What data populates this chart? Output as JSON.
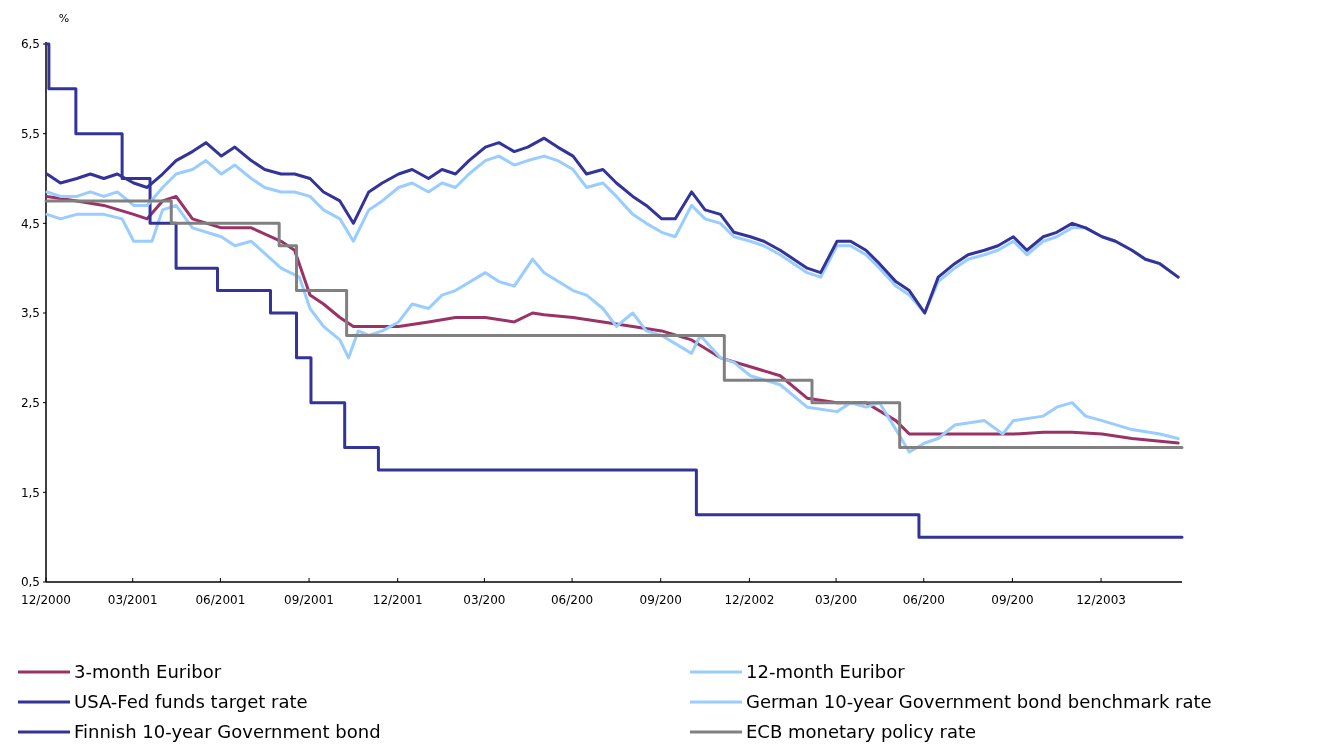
{
  "chart_data": {
    "type": "line",
    "ylabel": "%",
    "xlim": [
      "2000-12-31",
      "2004-03-24"
    ],
    "ylim": [
      0.5,
      6.5
    ],
    "xticks": [
      {
        "value": "2000-12-31",
        "label": "12/2000"
      },
      {
        "value": "2001-03-31",
        "label": "03/2001"
      },
      {
        "value": "2001-06-30",
        "label": "06/2001"
      },
      {
        "value": "2001-09-30",
        "label": "09/2001"
      },
      {
        "value": "2001-12-31",
        "label": "12/2001"
      },
      {
        "value": "2002-03-31",
        "label": "03/200"
      },
      {
        "value": "2002-06-30",
        "label": "06/200"
      },
      {
        "value": "2002-09-30",
        "label": "09/200"
      },
      {
        "value": "2002-12-31",
        "label": "12/2002"
      },
      {
        "value": "2003-03-31",
        "label": "03/200"
      },
      {
        "value": "2003-06-30",
        "label": "06/200"
      },
      {
        "value": "2003-09-30",
        "label": "09/200"
      },
      {
        "value": "2003-12-31",
        "label": "12/2003"
      }
    ],
    "yticks": [
      {
        "value": 0.5,
        "label": "0,5"
      },
      {
        "value": 1.5,
        "label": "1,5"
      },
      {
        "value": 2.5,
        "label": "2,5"
      },
      {
        "value": 3.5,
        "label": "3,5"
      },
      {
        "value": 4.5,
        "label": "4,5"
      },
      {
        "value": 5.5,
        "label": "5,5"
      },
      {
        "value": 6.5,
        "label": "6,5"
      }
    ],
    "grid": false,
    "legend": "bottom",
    "marker": "none",
    "line_style": "solid",
    "series": [
      {
        "name": "3-month Euribor",
        "color": "#993366",
        "x": [
          "2001-01-01",
          "2001-02-01",
          "2001-03-01",
          "2001-04-01",
          "2001-04-15",
          "2001-05-01",
          "2001-05-15",
          "2001-06-01",
          "2001-07-01",
          "2001-08-01",
          "2001-09-01",
          "2001-09-15",
          "2001-10-01",
          "2001-10-15",
          "2001-11-01",
          "2001-11-15",
          "2001-12-01",
          "2002-01-01",
          "2002-02-01",
          "2002-03-01",
          "2002-04-01",
          "2002-05-01",
          "2002-05-20",
          "2002-06-01",
          "2002-07-01",
          "2002-08-01",
          "2002-09-01",
          "2002-10-01",
          "2002-11-01",
          "2002-12-01",
          "2003-01-01",
          "2003-02-01",
          "2003-03-01",
          "2003-04-01",
          "2003-05-01",
          "2003-06-01",
          "2003-06-15",
          "2003-07-01",
          "2003-08-01",
          "2003-09-01",
          "2003-10-01",
          "2003-11-01",
          "2003-12-01",
          "2004-01-01",
          "2004-02-01",
          "2004-03-20"
        ],
        "values": [
          4.8,
          4.75,
          4.7,
          4.6,
          4.55,
          4.75,
          4.8,
          4.55,
          4.45,
          4.45,
          4.3,
          4.2,
          3.7,
          3.6,
          3.45,
          3.35,
          3.35,
          3.35,
          3.4,
          3.45,
          3.45,
          3.4,
          3.5,
          3.48,
          3.45,
          3.4,
          3.35,
          3.3,
          3.2,
          3.0,
          2.9,
          2.8,
          2.55,
          2.5,
          2.5,
          2.3,
          2.15,
          2.15,
          2.15,
          2.15,
          2.15,
          2.17,
          2.17,
          2.15,
          2.1,
          2.05
        ]
      },
      {
        "name": "12-month Euribor",
        "color": "#99ccff",
        "x": [
          "2001-01-01",
          "2001-01-15",
          "2001-02-01",
          "2001-03-01",
          "2001-03-20",
          "2001-04-01",
          "2001-04-20",
          "2001-05-01",
          "2001-05-15",
          "2001-06-01",
          "2001-07-01",
          "2001-07-15",
          "2001-08-01",
          "2001-09-01",
          "2001-09-20",
          "2001-10-01",
          "2001-10-15",
          "2001-11-01",
          "2001-11-10",
          "2001-11-20",
          "2001-12-01",
          "2001-12-15",
          "2002-01-01",
          "2002-01-15",
          "2002-02-01",
          "2002-02-15",
          "2002-03-01",
          "2002-04-01",
          "2002-04-15",
          "2002-05-01",
          "2002-05-20",
          "2002-06-01",
          "2002-07-01",
          "2002-07-15",
          "2002-08-01",
          "2002-08-15",
          "2002-09-01",
          "2002-09-15",
          "2002-10-01",
          "2002-11-01",
          "2002-11-10",
          "2002-12-01",
          "2002-12-15",
          "2003-01-01",
          "2003-02-01",
          "2003-03-01",
          "2003-04-01",
          "2003-04-15",
          "2003-05-01",
          "2003-05-15",
          "2003-06-01",
          "2003-06-15",
          "2003-07-01",
          "2003-07-15",
          "2003-08-01",
          "2003-09-01",
          "2003-09-20",
          "2003-10-01",
          "2003-11-01",
          "2003-11-15",
          "2003-12-01",
          "2003-12-15",
          "2004-01-01",
          "2004-02-01",
          "2004-03-01",
          "2004-03-20"
        ],
        "values": [
          4.6,
          4.55,
          4.6,
          4.6,
          4.55,
          4.3,
          4.3,
          4.65,
          4.7,
          4.45,
          4.35,
          4.25,
          4.3,
          4.0,
          3.9,
          3.55,
          3.35,
          3.2,
          3.0,
          3.3,
          3.25,
          3.3,
          3.4,
          3.6,
          3.55,
          3.7,
          3.75,
          3.95,
          3.85,
          3.8,
          4.1,
          3.95,
          3.75,
          3.7,
          3.55,
          3.35,
          3.5,
          3.3,
          3.25,
          3.05,
          3.25,
          3.0,
          2.95,
          2.8,
          2.7,
          2.45,
          2.4,
          2.5,
          2.45,
          2.5,
          2.2,
          1.95,
          2.05,
          2.1,
          2.25,
          2.3,
          2.15,
          2.3,
          2.35,
          2.45,
          2.5,
          2.35,
          2.3,
          2.2,
          2.15,
          2.1
        ]
      },
      {
        "name": "USA-Fed funds target rate",
        "color": "#333399",
        "type": "step",
        "x": [
          "2000-12-31",
          "2001-01-03",
          "2001-01-31",
          "2001-03-20",
          "2001-04-18",
          "2001-05-15",
          "2001-06-27",
          "2001-08-21",
          "2001-09-17",
          "2001-10-02",
          "2001-11-06",
          "2001-12-11",
          "2002-11-06",
          "2003-06-25",
          "2004-03-24"
        ],
        "values": [
          6.5,
          6.0,
          5.5,
          5.0,
          4.5,
          4.0,
          3.75,
          3.5,
          3.0,
          2.5,
          2.0,
          1.75,
          1.25,
          1.0,
          1.0
        ]
      },
      {
        "name": "German 10-year Government bond benchmark rate",
        "color": "#99ccff",
        "x": [
          "2001-01-01",
          "2001-01-15",
          "2001-02-01",
          "2001-02-15",
          "2001-03-01",
          "2001-03-15",
          "2001-04-01",
          "2001-04-15",
          "2001-05-01",
          "2001-05-15",
          "2001-06-01",
          "2001-06-15",
          "2001-07-01",
          "2001-07-15",
          "2001-08-01",
          "2001-08-15",
          "2001-09-01",
          "2001-09-15",
          "2001-10-01",
          "2001-10-15",
          "2001-11-01",
          "2001-11-15",
          "2001-12-01",
          "2001-12-15",
          "2002-01-01",
          "2002-01-15",
          "2002-02-01",
          "2002-02-15",
          "2002-03-01",
          "2002-03-15",
          "2002-04-01",
          "2002-04-15",
          "2002-05-01",
          "2002-05-15",
          "2002-06-01",
          "2002-06-15",
          "2002-07-01",
          "2002-07-15",
          "2002-08-01",
          "2002-08-15",
          "2002-09-01",
          "2002-09-15",
          "2002-10-01",
          "2002-10-15",
          "2002-11-01",
          "2002-11-15",
          "2002-12-01",
          "2002-12-15",
          "2003-01-01",
          "2003-01-15",
          "2003-02-01",
          "2003-02-15",
          "2003-03-01",
          "2003-03-15",
          "2003-04-01",
          "2003-04-15",
          "2003-05-01",
          "2003-05-15",
          "2003-06-01",
          "2003-06-15",
          "2003-07-01",
          "2003-07-15",
          "2003-08-01",
          "2003-08-15",
          "2003-09-01",
          "2003-09-15",
          "2003-10-01",
          "2003-10-15",
          "2003-11-01",
          "2003-11-15",
          "2003-12-01",
          "2003-12-15",
          "2004-01-01",
          "2004-01-15",
          "2004-02-01",
          "2004-02-15",
          "2004-03-01",
          "2004-03-20"
        ],
        "values": [
          4.85,
          4.8,
          4.8,
          4.85,
          4.8,
          4.85,
          4.7,
          4.7,
          4.9,
          5.05,
          5.1,
          5.2,
          5.05,
          5.15,
          5.0,
          4.9,
          4.85,
          4.85,
          4.8,
          4.65,
          4.55,
          4.3,
          4.65,
          4.75,
          4.9,
          4.95,
          4.85,
          4.95,
          4.9,
          5.05,
          5.2,
          5.25,
          5.15,
          5.2,
          5.25,
          5.2,
          5.1,
          4.9,
          4.95,
          4.8,
          4.6,
          4.5,
          4.4,
          4.35,
          4.7,
          4.55,
          4.5,
          4.35,
          4.3,
          4.25,
          4.15,
          4.05,
          3.95,
          3.9,
          4.25,
          4.25,
          4.15,
          4.0,
          3.8,
          3.7,
          3.5,
          3.85,
          4.0,
          4.1,
          4.15,
          4.2,
          4.3,
          4.15,
          4.3,
          4.35,
          4.45,
          4.45,
          4.35,
          4.3,
          4.2,
          4.1,
          4.05,
          3.9
        ]
      },
      {
        "name": "Finnish 10-year Government bond",
        "color": "#333399",
        "x": [
          "2001-01-01",
          "2001-01-15",
          "2001-02-01",
          "2001-02-15",
          "2001-03-01",
          "2001-03-15",
          "2001-04-01",
          "2001-04-15",
          "2001-05-01",
          "2001-05-15",
          "2001-06-01",
          "2001-06-15",
          "2001-07-01",
          "2001-07-15",
          "2001-08-01",
          "2001-08-15",
          "2001-09-01",
          "2001-09-15",
          "2001-10-01",
          "2001-10-15",
          "2001-11-01",
          "2001-11-15",
          "2001-12-01",
          "2001-12-15",
          "2002-01-01",
          "2002-01-15",
          "2002-02-01",
          "2002-02-15",
          "2002-03-01",
          "2002-03-15",
          "2002-04-01",
          "2002-04-15",
          "2002-05-01",
          "2002-05-15",
          "2002-06-01",
          "2002-06-15",
          "2002-07-01",
          "2002-07-15",
          "2002-08-01",
          "2002-08-15",
          "2002-09-01",
          "2002-09-15",
          "2002-10-01",
          "2002-10-15",
          "2002-11-01",
          "2002-11-15",
          "2002-12-01",
          "2002-12-15",
          "2003-01-01",
          "2003-01-15",
          "2003-02-01",
          "2003-02-15",
          "2003-03-01",
          "2003-03-15",
          "2003-04-01",
          "2003-04-15",
          "2003-05-01",
          "2003-05-15",
          "2003-06-01",
          "2003-06-15",
          "2003-07-01",
          "2003-07-15",
          "2003-08-01",
          "2003-08-15",
          "2003-09-01",
          "2003-09-15",
          "2003-10-01",
          "2003-10-15",
          "2003-11-01",
          "2003-11-15",
          "2003-12-01",
          "2003-12-15",
          "2004-01-01",
          "2004-01-15",
          "2004-02-01",
          "2004-02-15",
          "2004-03-01",
          "2004-03-20"
        ],
        "values": [
          5.05,
          4.95,
          5.0,
          5.05,
          5.0,
          5.05,
          4.95,
          4.9,
          5.05,
          5.2,
          5.3,
          5.4,
          5.25,
          5.35,
          5.2,
          5.1,
          5.05,
          5.05,
          5.0,
          4.85,
          4.75,
          4.5,
          4.85,
          4.95,
          5.05,
          5.1,
          5.0,
          5.1,
          5.05,
          5.2,
          5.35,
          5.4,
          5.3,
          5.35,
          5.45,
          5.35,
          5.25,
          5.05,
          5.1,
          4.95,
          4.8,
          4.7,
          4.55,
          4.55,
          4.85,
          4.65,
          4.6,
          4.4,
          4.35,
          4.3,
          4.2,
          4.1,
          4.0,
          3.95,
          4.3,
          4.3,
          4.2,
          4.05,
          3.85,
          3.75,
          3.5,
          3.9,
          4.05,
          4.15,
          4.2,
          4.25,
          4.35,
          4.2,
          4.35,
          4.4,
          4.5,
          4.45,
          4.35,
          4.3,
          4.2,
          4.1,
          4.05,
          3.9
        ]
      },
      {
        "name": "ECB monetary policy rate",
        "color": "#808080",
        "type": "step",
        "x": [
          "2000-12-31",
          "2001-05-10",
          "2001-08-30",
          "2001-09-17",
          "2001-11-08",
          "2002-12-05",
          "2003-03-06",
          "2003-06-05",
          "2004-03-24"
        ],
        "values": [
          4.75,
          4.5,
          4.25,
          3.75,
          3.25,
          2.75,
          2.5,
          2.0,
          2.0
        ]
      }
    ]
  }
}
